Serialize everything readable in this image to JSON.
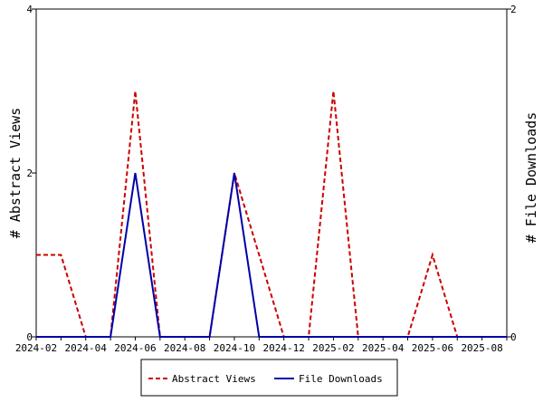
{
  "chart_data": {
    "type": "line",
    "x": [
      "2024-02",
      "2024-03",
      "2024-04",
      "2024-05",
      "2024-06",
      "2024-07",
      "2024-08",
      "2024-09",
      "2024-10",
      "2024-11",
      "2024-12",
      "2025-01",
      "2025-02",
      "2025-03",
      "2025-04",
      "2025-05",
      "2025-06",
      "2025-07",
      "2025-08",
      "2025-09"
    ],
    "x_tick_labels": [
      "2024-02",
      "2024-04",
      "2024-06",
      "2024-08",
      "2024-10",
      "2024-12",
      "2025-02",
      "2025-04",
      "2025-06",
      "2025-08"
    ],
    "ylabel_left": "# Abstract Views",
    "ylabel_right": "# File Downloads",
    "ylim_left": [
      0,
      4
    ],
    "ylim_right": [
      0,
      2
    ],
    "yticks_left": [
      0,
      2,
      4
    ],
    "yticks_right": [
      0,
      2
    ],
    "legend_position": "bottom-center",
    "grid": false,
    "series": [
      {
        "name": "Abstract Views",
        "axis": "left",
        "color": "#cc0000",
        "style": "dashed",
        "values": [
          1,
          1,
          0,
          0,
          3,
          0,
          0,
          0,
          2,
          1,
          0,
          0,
          3,
          0,
          0,
          0,
          1,
          0,
          0,
          0
        ]
      },
      {
        "name": "File Downloads",
        "axis": "right",
        "color": "#0000aa",
        "style": "solid",
        "values": [
          0,
          0,
          0,
          0,
          1,
          0,
          0,
          0,
          1,
          0,
          0,
          0,
          0,
          0,
          0,
          0,
          0,
          0,
          0,
          0
        ]
      }
    ]
  }
}
